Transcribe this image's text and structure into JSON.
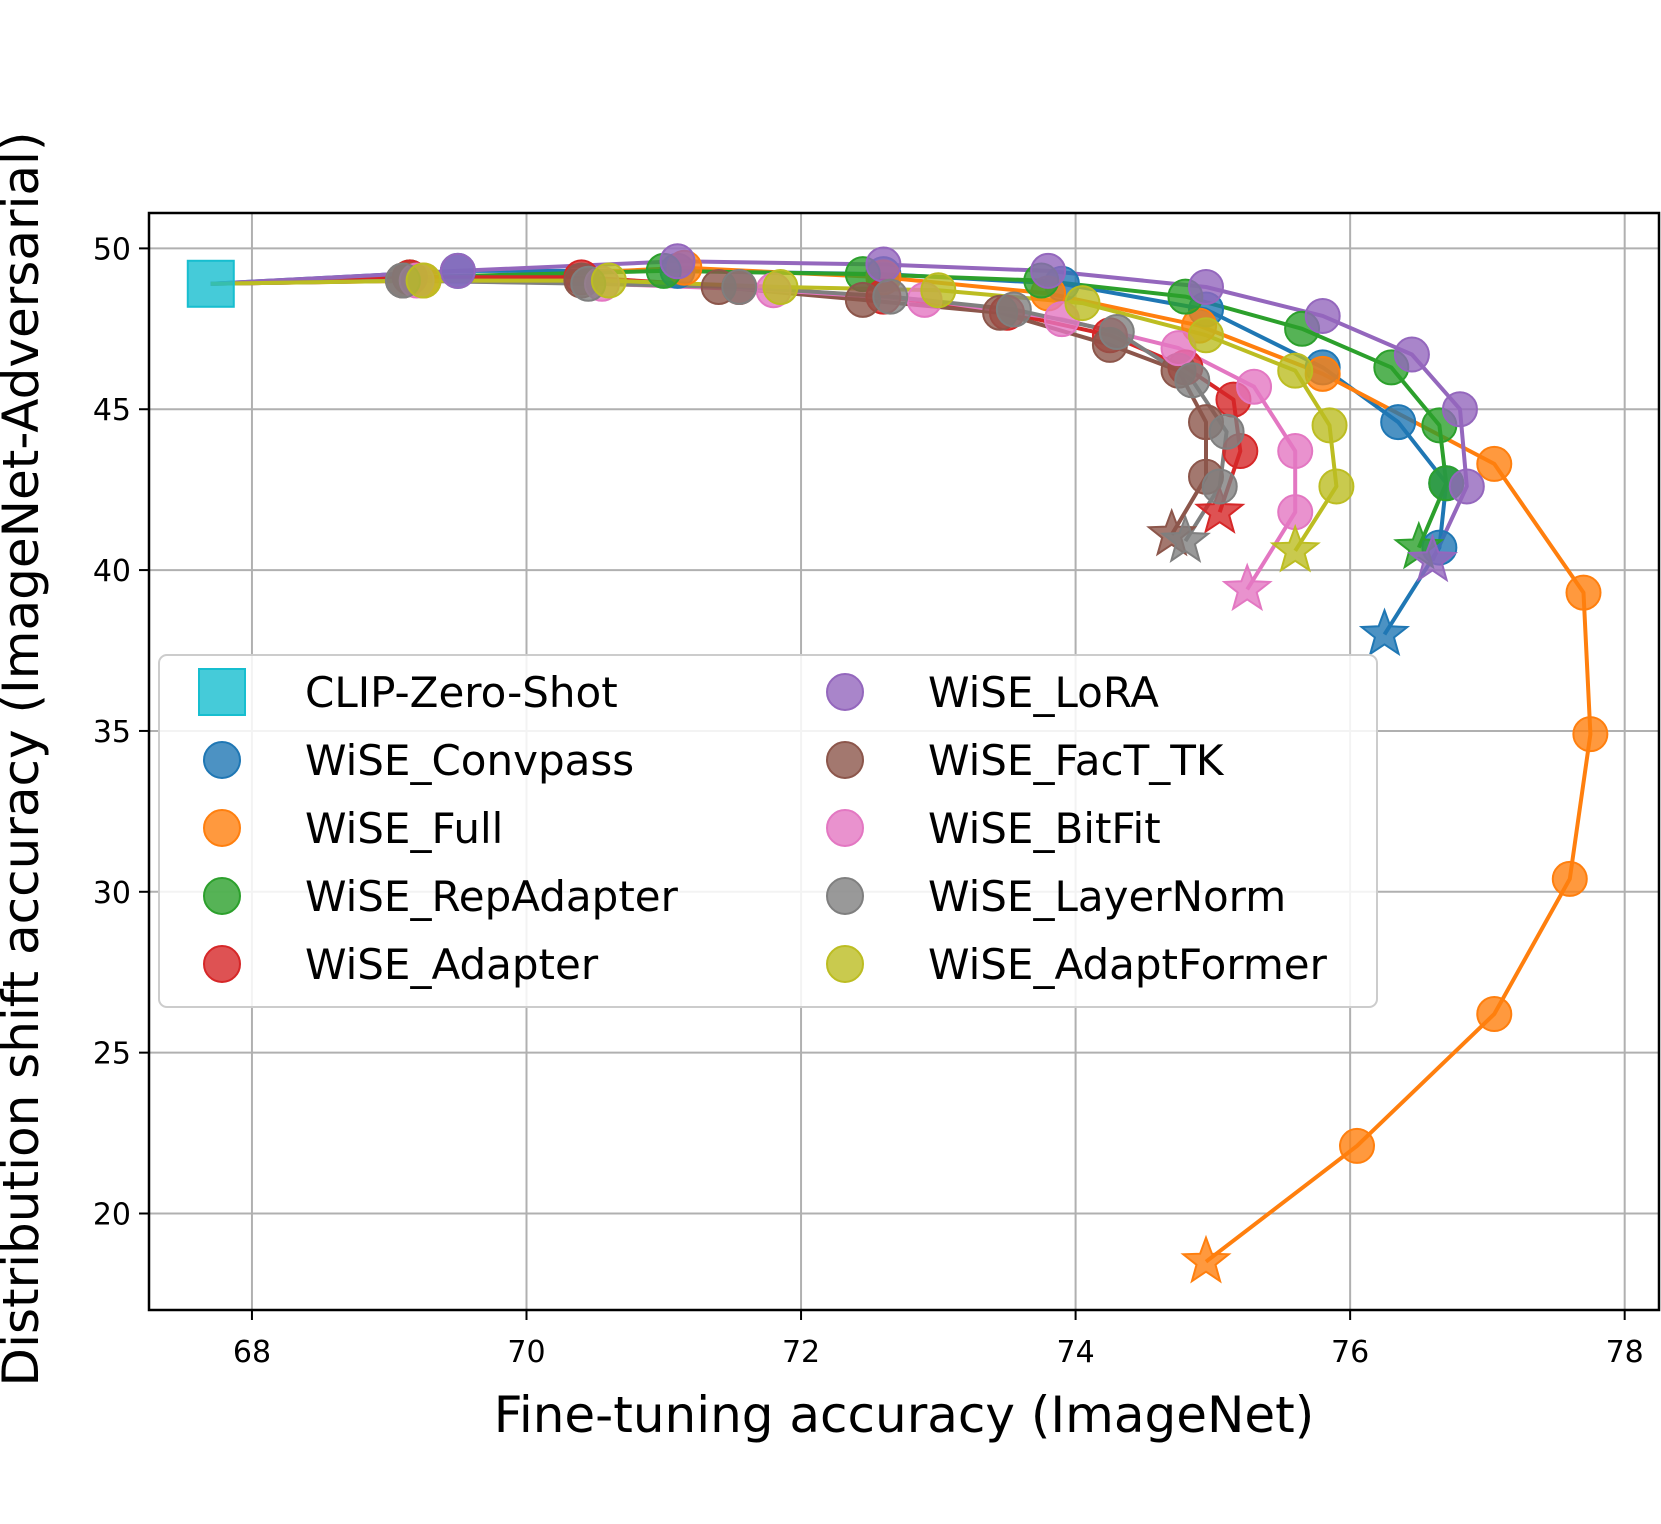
{
  "chart_data": {
    "type": "line",
    "title": "",
    "xlabel": "Fine-tuning accuracy (ImageNet)",
    "ylabel": "Distribution shift accuracy (ImageNet-Adversarial)",
    "xlim": [
      67.25,
      78.25
    ],
    "ylim": [
      17.0,
      51.1
    ],
    "xticks": [
      68,
      70,
      72,
      74,
      76,
      78
    ],
    "yticks": [
      20,
      25,
      30,
      35,
      40,
      45,
      50
    ],
    "grid": true,
    "legend_position": "lower-left",
    "legend_columns": 2,
    "zero_shot": {
      "name": "CLIP-Zero-Shot",
      "color": "#17becf",
      "marker": "square",
      "x": 67.7,
      "y": 48.9
    },
    "series": [
      {
        "name": "WiSE_Convpass",
        "color": "#1f77b4",
        "x": [
          67.7,
          69.5,
          71.1,
          72.6,
          73.9,
          74.95,
          75.8,
          76.35,
          76.7,
          76.65,
          76.25
        ],
        "y": [
          48.9,
          49.3,
          49.3,
          49.2,
          48.9,
          48.1,
          46.3,
          44.6,
          42.7,
          40.7,
          38.0
        ]
      },
      {
        "name": "WiSE_Full",
        "color": "#ff7f0e",
        "x": [
          67.7,
          69.25,
          71.15,
          72.6,
          73.8,
          74.9,
          75.8,
          77.05,
          77.7,
          77.75,
          77.6,
          77.05,
          76.05,
          74.95
        ],
        "y": [
          48.9,
          49.0,
          49.4,
          49.1,
          48.6,
          47.6,
          46.1,
          43.3,
          39.3,
          34.9,
          30.4,
          26.2,
          22.1,
          18.5
        ]
      },
      {
        "name": "WiSE_RepAdapter",
        "color": "#2ca02c",
        "x": [
          67.7,
          69.15,
          71.0,
          72.45,
          73.75,
          74.8,
          75.65,
          76.3,
          76.65,
          76.7,
          76.5
        ],
        "y": [
          48.9,
          49.1,
          49.3,
          49.2,
          49.0,
          48.5,
          47.5,
          46.3,
          44.5,
          42.7,
          40.7
        ]
      },
      {
        "name": "WiSE_Adapter",
        "color": "#d62728",
        "x": [
          67.7,
          69.15,
          70.4,
          71.55,
          72.6,
          73.5,
          74.25,
          74.8,
          75.15,
          75.2,
          75.05
        ],
        "y": [
          48.9,
          49.1,
          49.1,
          48.8,
          48.5,
          48.0,
          47.3,
          46.3,
          45.3,
          43.7,
          41.8
        ]
      },
      {
        "name": "WiSE_LoRA",
        "color": "#9467bd",
        "x": [
          67.7,
          69.5,
          71.1,
          72.6,
          73.8,
          74.95,
          75.8,
          76.45,
          76.8,
          76.85,
          76.6
        ],
        "y": [
          48.9,
          49.3,
          49.6,
          49.5,
          49.3,
          48.8,
          47.9,
          46.7,
          45.0,
          42.6,
          40.3
        ]
      },
      {
        "name": "WiSE_FacT_TK",
        "color": "#8c564b",
        "x": [
          67.7,
          69.1,
          70.4,
          71.4,
          72.45,
          73.45,
          74.25,
          74.75,
          74.95,
          74.95,
          74.7
        ],
        "y": [
          48.9,
          49.0,
          49.0,
          48.8,
          48.4,
          48.0,
          47.0,
          46.2,
          44.6,
          42.9,
          41.1
        ]
      },
      {
        "name": "WiSE_BitFit",
        "color": "#e377c2",
        "x": [
          67.7,
          69.2,
          70.55,
          71.8,
          72.9,
          73.9,
          74.75,
          75.3,
          75.6,
          75.6,
          75.25
        ],
        "y": [
          48.9,
          49.0,
          48.9,
          48.7,
          48.4,
          47.8,
          46.9,
          45.7,
          43.7,
          41.8,
          39.4
        ]
      },
      {
        "name": "WiSE_LayerNorm",
        "color": "#7f7f7f",
        "x": [
          67.7,
          69.1,
          70.45,
          71.55,
          72.65,
          73.55,
          74.3,
          74.85,
          75.1,
          75.05,
          74.8
        ],
        "y": [
          48.9,
          49.0,
          48.9,
          48.8,
          48.5,
          48.1,
          47.4,
          45.9,
          44.3,
          42.6,
          40.9
        ]
      },
      {
        "name": "WiSE_AdaptFormer",
        "color": "#bcbd22",
        "x": [
          67.7,
          69.25,
          70.6,
          71.85,
          73.0,
          74.05,
          74.95,
          75.6,
          75.85,
          75.9,
          75.6
        ],
        "y": [
          48.9,
          49.0,
          49.0,
          48.8,
          48.7,
          48.3,
          47.3,
          46.2,
          44.5,
          42.6,
          40.6
        ]
      }
    ]
  }
}
